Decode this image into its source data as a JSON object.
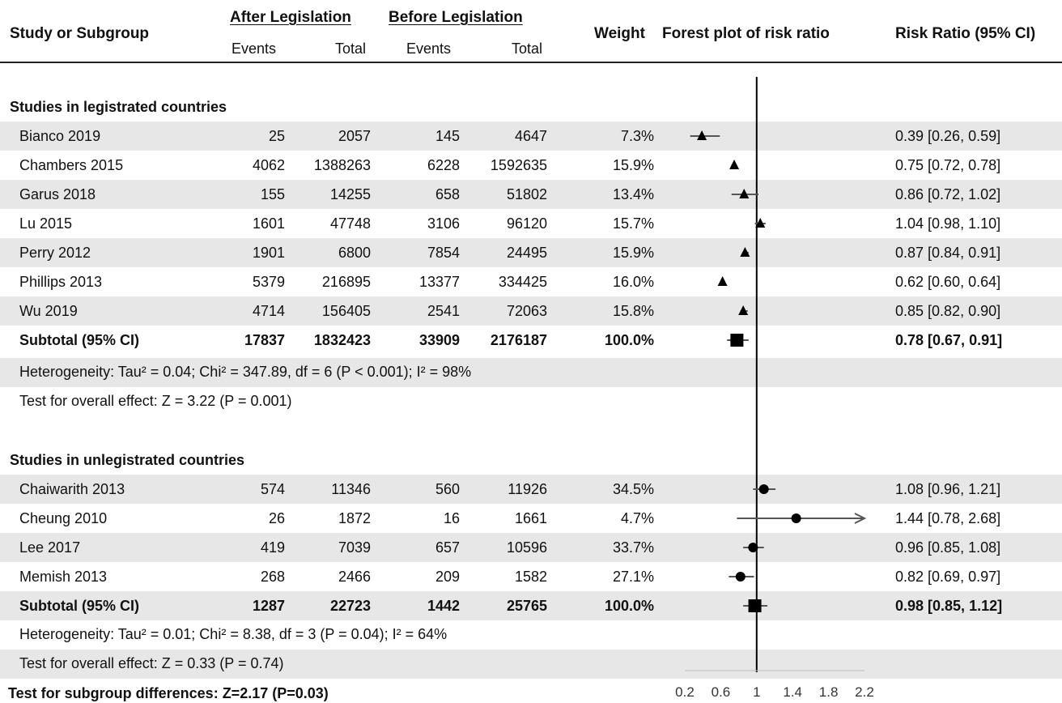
{
  "headers": {
    "study": "Study or Subgroup",
    "after": "After Legislation",
    "before": "Before Legislation",
    "events": "Events",
    "total": "Total",
    "weight": "Weight",
    "forest": "Forest plot of risk ratio",
    "rr": "Risk Ratio (95% CI)"
  },
  "chart_data": {
    "type": "forest",
    "scale_ticks": [
      "0.2",
      "0.6",
      "1",
      "1.4",
      "1.8",
      "2.2"
    ],
    "xlim": [
      0.2,
      2.2
    ],
    "reference_line": 1,
    "groups": [
      {
        "name": "Studies in legistrated countries",
        "marker": "triangle",
        "studies": [
          {
            "study": "Bianco 2019",
            "after_events": "25",
            "after_total": "2057",
            "before_events": "145",
            "before_total": "4647",
            "weight": "7.3%",
            "rr": 0.39,
            "lo": 0.26,
            "hi": 0.59,
            "ci_text": "0.39 [0.26, 0.59]"
          },
          {
            "study": "Chambers 2015",
            "after_events": "4062",
            "after_total": "1388263",
            "before_events": "6228",
            "before_total": "1592635",
            "weight": "15.9%",
            "rr": 0.75,
            "lo": 0.72,
            "hi": 0.78,
            "ci_text": "0.75 [0.72, 0.78]"
          },
          {
            "study": "Garus 2018",
            "after_events": "155",
            "after_total": "14255",
            "before_events": "658",
            "before_total": "51802",
            "weight": "13.4%",
            "rr": 0.86,
            "lo": 0.72,
            "hi": 1.02,
            "ci_text": "0.86 [0.72, 1.02]"
          },
          {
            "study": "Lu 2015",
            "after_events": "1601",
            "after_total": "47748",
            "before_events": "3106",
            "before_total": "96120",
            "weight": "15.7%",
            "rr": 1.04,
            "lo": 0.98,
            "hi": 1.1,
            "ci_text": "1.04 [0.98, 1.10]"
          },
          {
            "study": "Perry 2012",
            "after_events": "1901",
            "after_total": "6800",
            "before_events": "7854",
            "before_total": "24495",
            "weight": "15.9%",
            "rr": 0.87,
            "lo": 0.84,
            "hi": 0.91,
            "ci_text": "0.87 [0.84, 0.91]"
          },
          {
            "study": "Phillips 2013",
            "after_events": "5379",
            "after_total": "216895",
            "before_events": "13377",
            "before_total": "334425",
            "weight": "16.0%",
            "rr": 0.62,
            "lo": 0.6,
            "hi": 0.64,
            "ci_text": "0.62 [0.60, 0.64]"
          },
          {
            "study": "Wu 2019",
            "after_events": "4714",
            "after_total": "156405",
            "before_events": "2541",
            "before_total": "72063",
            "weight": "15.8%",
            "rr": 0.85,
            "lo": 0.82,
            "hi": 0.9,
            "ci_text": "0.85 [0.82, 0.90]"
          }
        ],
        "subtotal": {
          "study": "Subtotal (95% CI)",
          "after_events": "17837",
          "after_total": "1832423",
          "before_events": "33909",
          "before_total": "2176187",
          "weight": "100.0%",
          "rr": 0.78,
          "lo": 0.67,
          "hi": 0.91,
          "ci_text": "0.78 [0.67, 0.91]"
        },
        "heterogeneity": "Heterogeneity: Tau² = 0.04; Chi² = 347.89, df = 6 (P < 0.001); I² = 98%",
        "overall": "Test for overall effect: Z = 3.22 (P = 0.001)"
      },
      {
        "name": "Studies in unlegistrated countries",
        "marker": "circle",
        "studies": [
          {
            "study": "Chaiwarith 2013",
            "after_events": "574",
            "after_total": "11346",
            "before_events": "560",
            "before_total": "11926",
            "weight": "34.5%",
            "rr": 1.08,
            "lo": 0.96,
            "hi": 1.21,
            "ci_text": "1.08 [0.96, 1.21]"
          },
          {
            "study": "Cheung 2010",
            "after_events": "26",
            "after_total": "1872",
            "before_events": "16",
            "before_total": "1661",
            "weight": "4.7%",
            "rr": 1.44,
            "lo": 0.78,
            "hi": 2.68,
            "ci_text": "1.44 [0.78, 2.68]"
          },
          {
            "study": "Lee 2017",
            "after_events": "419",
            "after_total": "7039",
            "before_events": "657",
            "before_total": "10596",
            "weight": "33.7%",
            "rr": 0.96,
            "lo": 0.85,
            "hi": 1.08,
            "ci_text": "0.96 [0.85, 1.08]"
          },
          {
            "study": "Memish 2013",
            "after_events": "268",
            "after_total": "2466",
            "before_events": "209",
            "before_total": "1582",
            "weight": "27.1%",
            "rr": 0.82,
            "lo": 0.69,
            "hi": 0.97,
            "ci_text": "0.82 [0.69, 0.97]"
          }
        ],
        "subtotal": {
          "study": "Subtotal (95% CI)",
          "after_events": "1287",
          "after_total": "22723",
          "before_events": "1442",
          "before_total": "25765",
          "weight": "100.0%",
          "rr": 0.98,
          "lo": 0.85,
          "hi": 1.12,
          "ci_text": "0.98 [0.85, 1.12]"
        },
        "heterogeneity": "Heterogeneity: Tau² = 0.01; Chi² = 8.38, df = 3 (P = 0.04); I² = 64%",
        "overall": "Test for overall effect: Z = 0.33 (P = 0.74)"
      }
    ],
    "subgroup_test": "Test for subgroup differences: Z=2.17 (P=0.03)",
    "colors": {
      "stripe": "#e7e7e7",
      "marker": "#000000",
      "ci_line": "#555555"
    }
  }
}
